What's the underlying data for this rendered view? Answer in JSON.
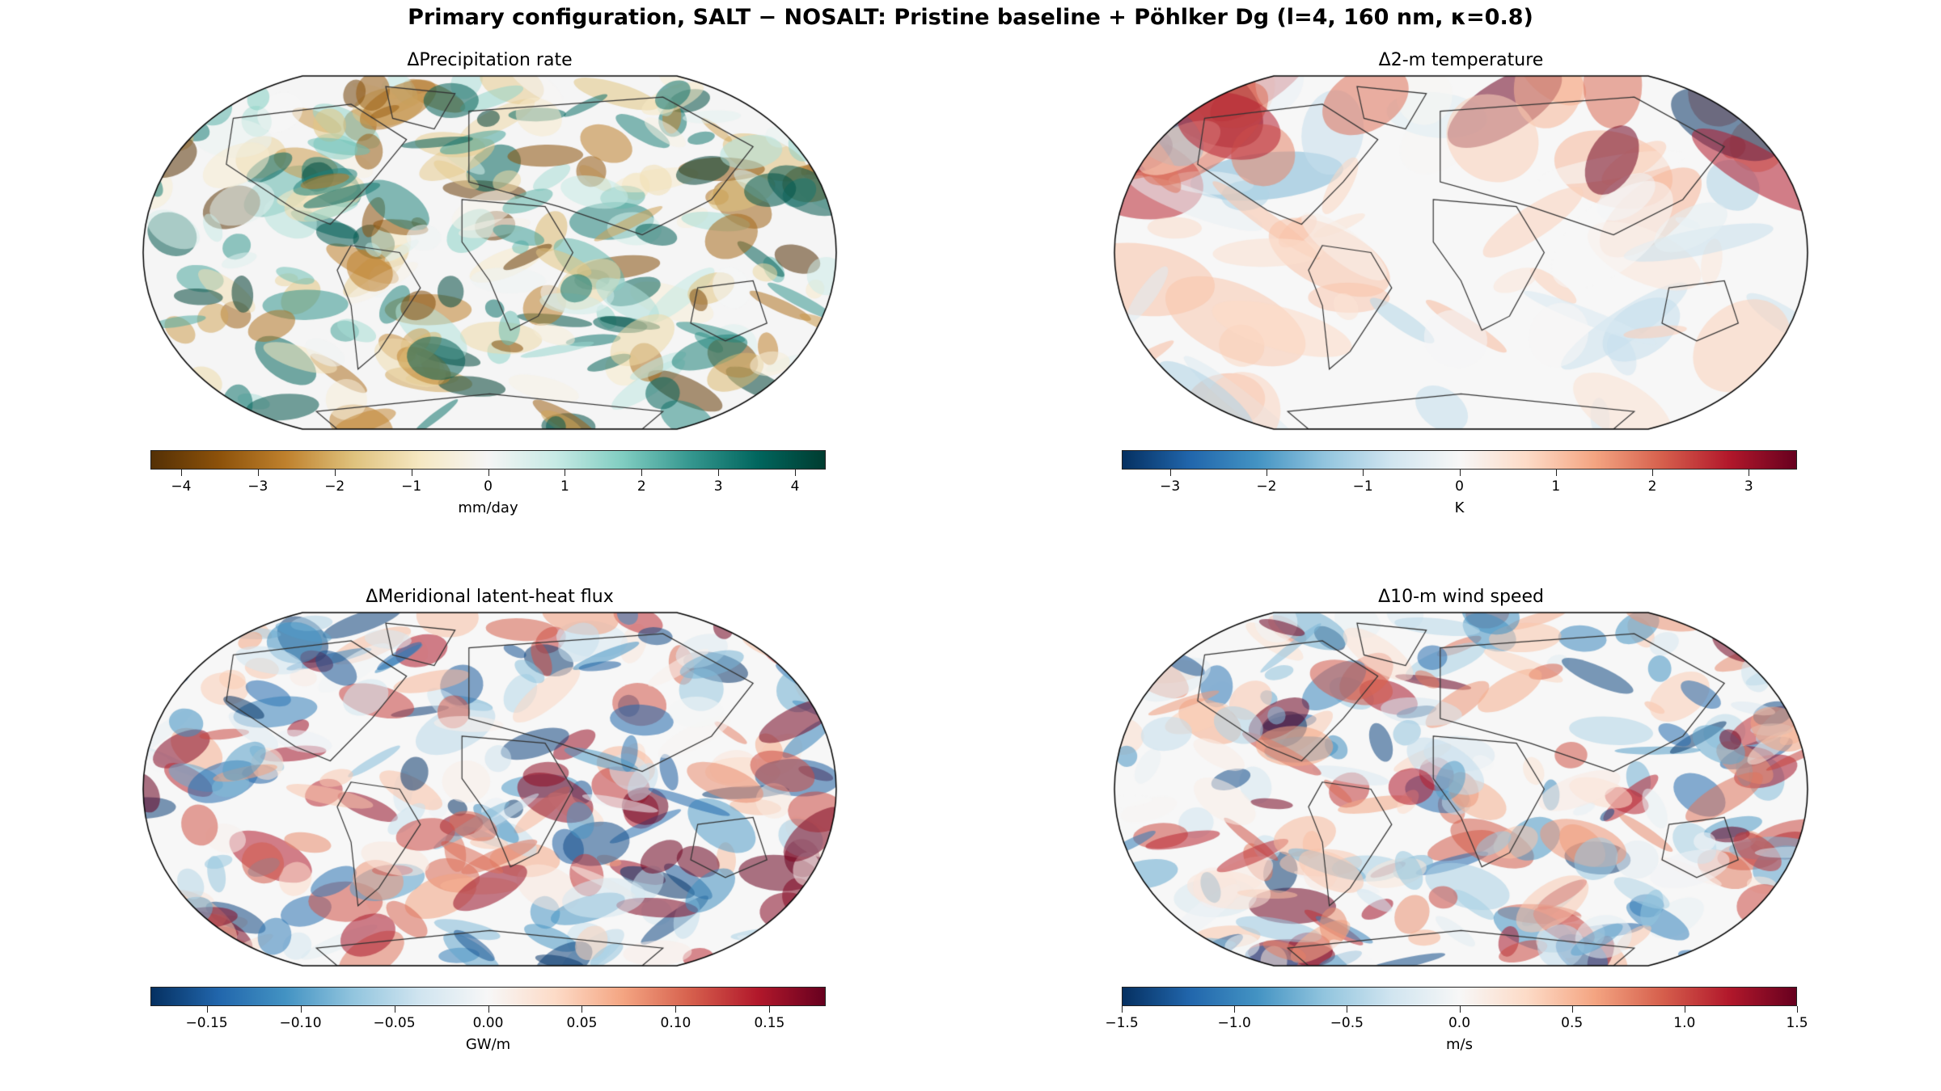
{
  "suptitle": "Primary configuration, SALT − NOSALT: Pristine baseline + Pöhlker Dg (l=4, 160 nm, κ=0.8)",
  "chart_data": [
    {
      "type": "heatmap",
      "title": "ΔPrecipitation rate",
      "colormap": "BrBG",
      "clim": [
        -4.4,
        4.4
      ],
      "ticks": [
        -4,
        -3,
        -2,
        -1,
        0,
        1,
        2,
        3,
        4
      ],
      "tick_labels": [
        "−4",
        "−3",
        "−2",
        "−1",
        "0",
        "1",
        "2",
        "3",
        "4"
      ],
      "colorbar_label": "mm/day",
      "projection": "Robinson",
      "coastlines": true
    },
    {
      "type": "heatmap",
      "title": "Δ2-m temperature",
      "colormap": "RdBu_r",
      "clim": [
        -3.5,
        3.5
      ],
      "ticks": [
        -3,
        -2,
        -1,
        0,
        1,
        2,
        3
      ],
      "tick_labels": [
        "−3",
        "−2",
        "−1",
        "0",
        "1",
        "2",
        "3"
      ],
      "colorbar_label": "K",
      "projection": "Robinson",
      "coastlines": true
    },
    {
      "type": "heatmap",
      "title": "ΔMeridional latent-heat flux",
      "colormap": "RdBu_r",
      "clim": [
        -0.18,
        0.18
      ],
      "ticks": [
        -0.15,
        -0.1,
        -0.05,
        0,
        0.05,
        0.1,
        0.15
      ],
      "tick_labels": [
        "−0.15",
        "−0.10",
        "−0.05",
        "0.00",
        "0.05",
        "0.10",
        "0.15"
      ],
      "colorbar_label": "GW/m",
      "projection": "Robinson",
      "coastlines": true
    },
    {
      "type": "heatmap",
      "title": "Δ10-m wind speed",
      "colormap": "RdBu_r",
      "clim": [
        -1.5,
        1.5
      ],
      "ticks": [
        -1.5,
        -1.0,
        -0.5,
        0,
        0.5,
        1.0,
        1.5
      ],
      "tick_labels": [
        "−1.5",
        "−1.0",
        "−0.5",
        "0.0",
        "0.5",
        "1.0",
        "1.5"
      ],
      "colorbar_label": "m/s",
      "projection": "Robinson",
      "coastlines": true
    }
  ]
}
